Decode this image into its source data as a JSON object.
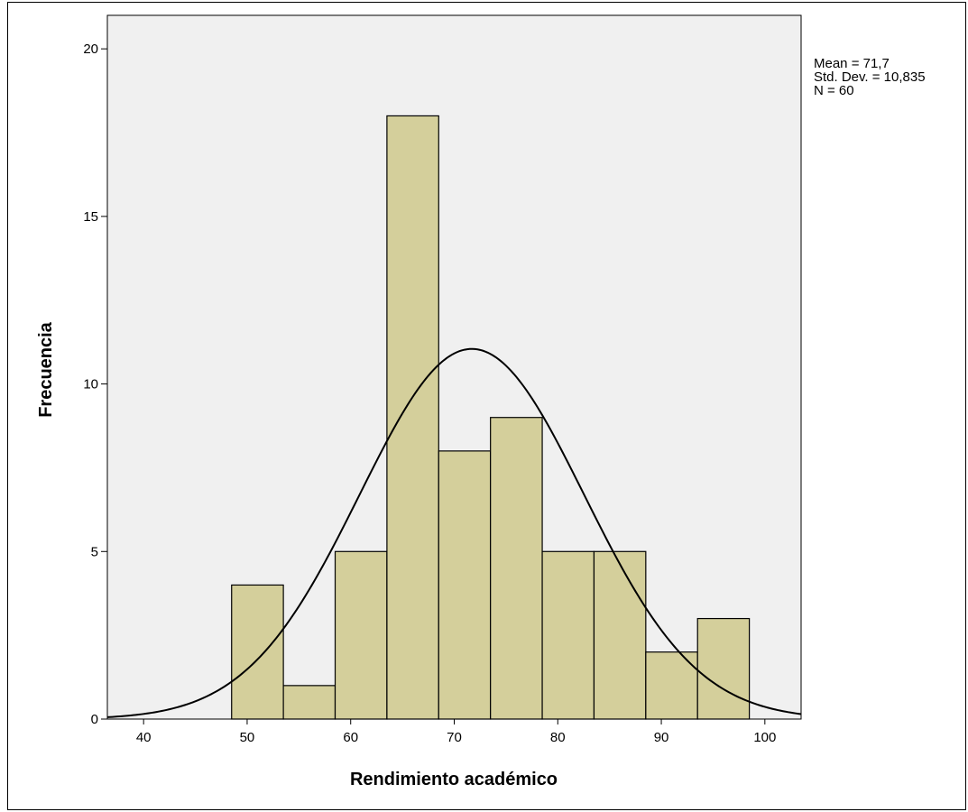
{
  "chart_data": {
    "type": "bar",
    "subtype": "histogram",
    "title": "",
    "xlabel": "Rendimiento académico",
    "ylabel": "Frecuencia",
    "xlim": [
      36.5,
      103.5
    ],
    "ylim": [
      0,
      21
    ],
    "xticks": [
      40,
      50,
      60,
      70,
      80,
      90,
      100
    ],
    "yticks": [
      0,
      5,
      10,
      15,
      20
    ],
    "bin_width": 5,
    "bins": [
      {
        "start": 48.5,
        "end": 53.5,
        "count": 4
      },
      {
        "start": 53.5,
        "end": 58.5,
        "count": 1
      },
      {
        "start": 58.5,
        "end": 63.5,
        "count": 5
      },
      {
        "start": 63.5,
        "end": 68.5,
        "count": 18
      },
      {
        "start": 68.5,
        "end": 73.5,
        "count": 8
      },
      {
        "start": 73.5,
        "end": 78.5,
        "count": 9
      },
      {
        "start": 78.5,
        "end": 83.5,
        "count": 5
      },
      {
        "start": 83.5,
        "end": 88.5,
        "count": 5
      },
      {
        "start": 88.5,
        "end": 93.5,
        "count": 2
      },
      {
        "start": 93.5,
        "end": 98.5,
        "count": 3
      }
    ],
    "normal_curve": {
      "mean": 71.7,
      "std": 10.835,
      "n": 60
    },
    "stats_text": [
      "Mean = 71,7",
      "Std. Dev. = 10,835",
      "N = 60"
    ],
    "grid": false,
    "colors": {
      "bar_fill": "#d4cf9b",
      "bar_stroke": "#000000",
      "plot_bg": "#f0f0f0",
      "curve": "#000000"
    }
  }
}
